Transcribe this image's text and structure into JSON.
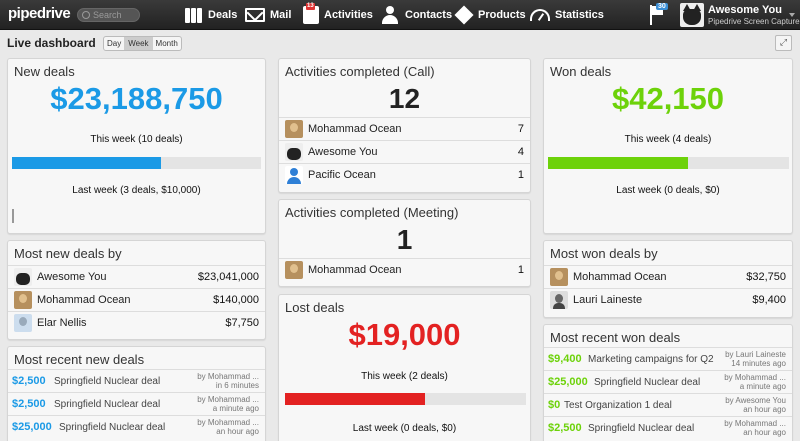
{
  "app": {
    "logo": "pipedrive",
    "search_placeholder": "Search"
  },
  "nav": [
    {
      "label": "Deals",
      "icon": "deals-icon"
    },
    {
      "label": "Mail",
      "icon": "mail-icon"
    },
    {
      "label": "Activities",
      "icon": "calendar-icon",
      "badge": "13"
    },
    {
      "label": "Contacts",
      "icon": "contacts-icon"
    },
    {
      "label": "Products",
      "icon": "box-icon"
    },
    {
      "label": "Statistics",
      "icon": "gauge-icon"
    }
  ],
  "notifications": {
    "count": "30"
  },
  "user": {
    "name": "Awesome You",
    "company": "Pipedrive Screen Capture"
  },
  "dashboard": {
    "title": "Live dashboard",
    "ranges": [
      "Day",
      "Week",
      "Month"
    ],
    "active_range": "Week"
  },
  "colors": {
    "blue": "#1b9ae6",
    "green": "#6dd20a",
    "red": "#e32222",
    "dark": "#222222"
  },
  "new_deals": {
    "title": "New deals",
    "amount": "$23,188,750",
    "this_week": "This week (10 deals)",
    "progress": 0.6,
    "last_week": "Last week (3 deals, $10,000)"
  },
  "call_activities": {
    "title": "Activities completed (Call)",
    "count": "12",
    "rows": [
      {
        "name": "Mohammad Ocean",
        "value": "7"
      },
      {
        "name": "Awesome You",
        "value": "4"
      },
      {
        "name": "Pacific Ocean",
        "value": "1"
      }
    ]
  },
  "won_deals": {
    "title": "Won deals",
    "amount": "$42,150",
    "this_week": "This week (4 deals)",
    "progress": 0.58,
    "last_week": "Last week (0 deals, $0)"
  },
  "meeting_activities": {
    "title": "Activities completed (Meeting)",
    "count": "1",
    "rows": [
      {
        "name": "Mohammad Ocean",
        "value": "1"
      }
    ]
  },
  "most_new_deals": {
    "title": "Most new deals by",
    "rows": [
      {
        "name": "Awesome You",
        "value": "$23,041,000"
      },
      {
        "name": "Mohammad Ocean",
        "value": "$140,000"
      },
      {
        "name": "Elar Nellis",
        "value": "$7,750"
      }
    ]
  },
  "lost_deals": {
    "title": "Lost deals",
    "amount": "$19,000",
    "this_week": "This week (2 deals)",
    "progress": 0.58,
    "last_week": "Last week (0 deals, $0)"
  },
  "most_won_deals": {
    "title": "Most won deals by",
    "rows": [
      {
        "name": "Mohammad Ocean",
        "value": "$32,750"
      },
      {
        "name": "Lauri Laineste",
        "value": "$9,400"
      }
    ]
  },
  "recent_new_deals": {
    "title": "Most recent new deals",
    "rows": [
      {
        "amount": "$2,500",
        "title": "Springfield Nuclear deal",
        "by": "by Mohammad ...",
        "when": "in 6 minutes"
      },
      {
        "amount": "$2,500",
        "title": "Springfield Nuclear deal",
        "by": "by Mohammad ...",
        "when": "a minute ago"
      },
      {
        "amount": "$25,000",
        "title": "Springfield Nuclear deal",
        "by": "by Mohammad ...",
        "when": "an hour ago"
      }
    ]
  },
  "recent_won_deals": {
    "title": "Most recent won deals",
    "rows": [
      {
        "amount": "$9,400",
        "title": "Marketing campaigns for Q2",
        "by": "by Lauri Laineste",
        "when": "14 minutes ago"
      },
      {
        "amount": "$25,000",
        "title": "Springfield Nuclear deal",
        "by": "by Mohammad ...",
        "when": "a minute ago"
      },
      {
        "amount": "$0",
        "title": "Test Organization 1 deal",
        "by": "by Awesome You",
        "when": "an hour ago"
      },
      {
        "amount": "$2,500",
        "title": "Springfield Nuclear deal",
        "by": "by Mohammad ...",
        "when": "an hour ago"
      }
    ]
  }
}
